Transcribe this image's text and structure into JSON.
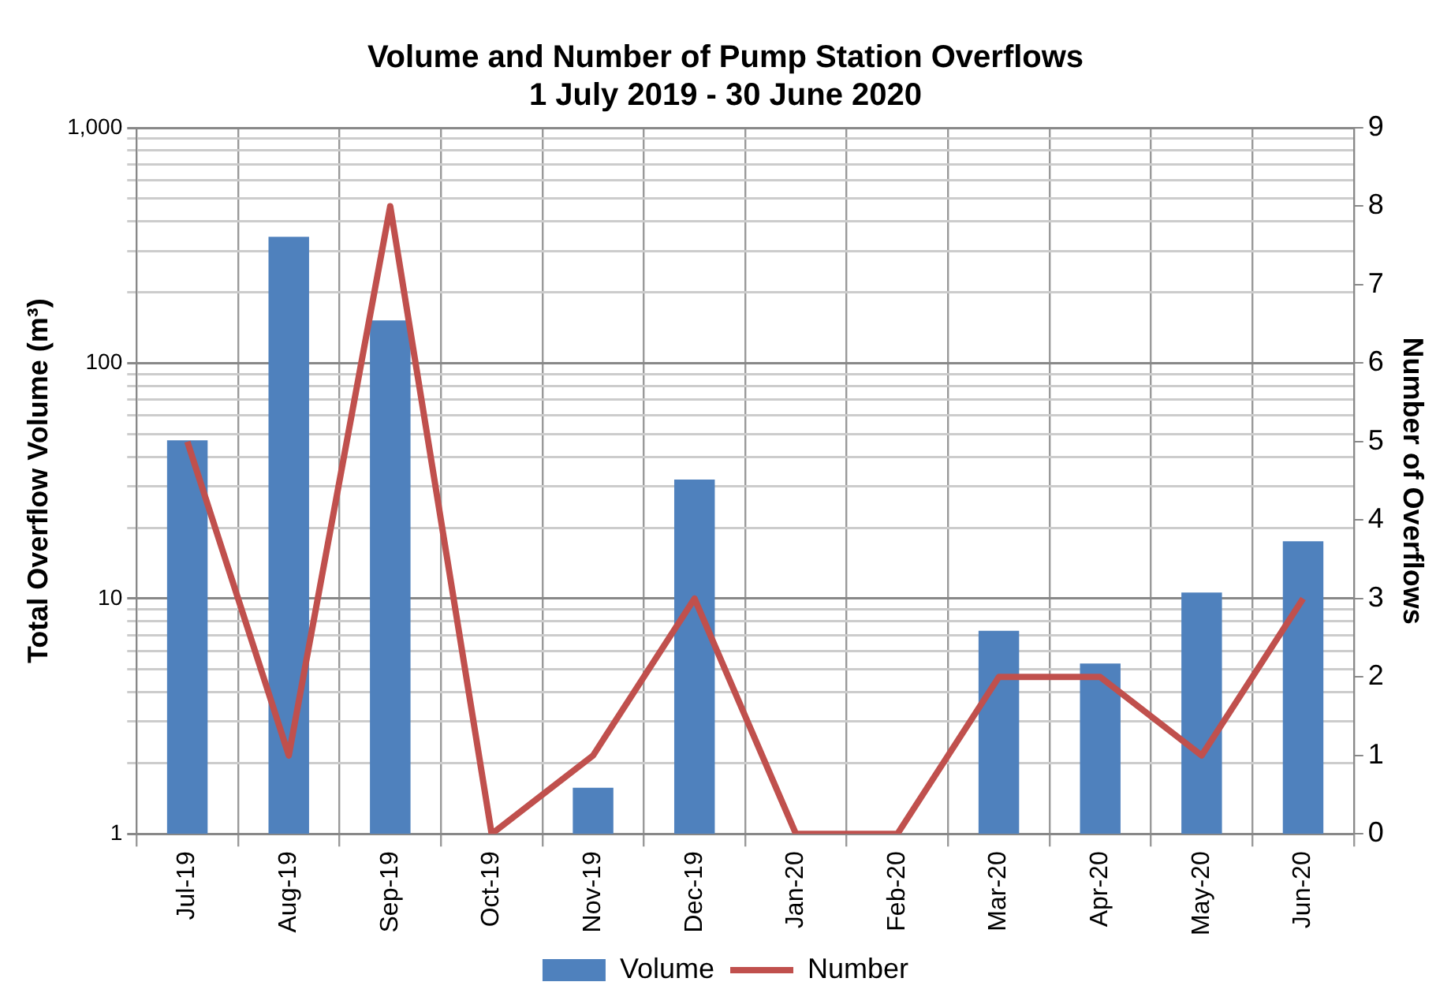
{
  "chart_data": {
    "type": "bar",
    "title": "Volume and Number of Pump Station Overflows",
    "subtitle": "1 July 2019 - 30 June 2020",
    "ylabel": "Total Overflow Volume (m³)",
    "y2label": "Number of Overflows",
    "categories": [
      "Jul-19",
      "Aug-19",
      "Sep-19",
      "Oct-19",
      "Nov-19",
      "Dec-19",
      "Jan-20",
      "Feb-20",
      "Mar-20",
      "Apr-20",
      "May-20",
      "Jun-20"
    ],
    "series": [
      {
        "name": "Volume",
        "color": "#4f81bd",
        "values": [
          47,
          344,
          152,
          null,
          1.57,
          32,
          null,
          null,
          7.3,
          5.3,
          10.6,
          17.5
        ]
      },
      {
        "name": "Number",
        "type": "line",
        "axis": "y2",
        "color": "#c0504d",
        "values": [
          5,
          1,
          8,
          0,
          1,
          3,
          0,
          0,
          2,
          2,
          1,
          3
        ]
      }
    ],
    "log": "y",
    "ylim": [
      1,
      1000
    ],
    "yticks": [
      1,
      {
        "value": 2,
        "label": null
      },
      {
        "value": 3,
        "label": null
      },
      {
        "value": 4,
        "label": null
      },
      {
        "value": 5,
        "label": null
      },
      {
        "value": 6,
        "label": null
      },
      {
        "value": 7,
        "label": null
      },
      {
        "value": 8,
        "label": null
      },
      {
        "value": 9,
        "label": null
      },
      10,
      {
        "value": 20,
        "label": null
      },
      {
        "value": 30,
        "label": null
      },
      {
        "value": 40,
        "label": null
      },
      {
        "value": 50,
        "label": null
      },
      {
        "value": 60,
        "label": null
      },
      {
        "value": 70,
        "label": null
      },
      {
        "value": 80,
        "label": null
      },
      {
        "value": 90,
        "label": null
      },
      100,
      {
        "value": 200,
        "label": null
      },
      {
        "value": 300,
        "label": null
      },
      {
        "value": 400,
        "label": null
      },
      {
        "value": 500,
        "label": null
      },
      {
        "value": 600,
        "label": null
      },
      {
        "value": 700,
        "label": null
      },
      {
        "value": 800,
        "label": null
      },
      {
        "value": 900,
        "label": null
      },
      {
        "value": 1000,
        "label": "1,000"
      }
    ],
    "y2lim": [
      0,
      9
    ],
    "y2ticks": [
      0,
      1,
      2,
      3,
      4,
      5,
      6,
      7,
      8,
      9
    ],
    "grid": true,
    "legend": "bottom",
    "marker": "none",
    "line_style": "solid"
  }
}
